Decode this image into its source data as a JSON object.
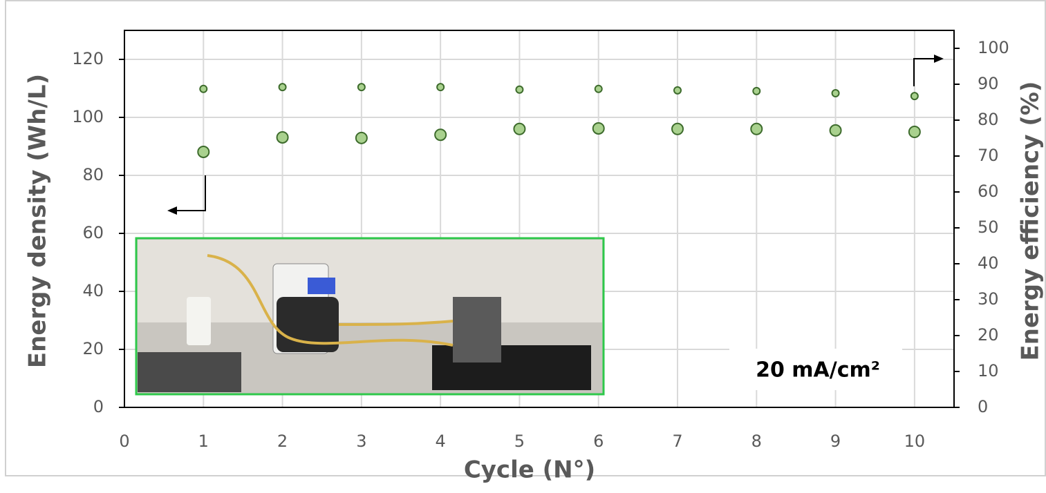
{
  "chart_data": {
    "type": "scatter",
    "x_label": "Cycle (N°)",
    "y_label": "Energy density (Wh/L)",
    "y2_label": "Energy efficiency (%)",
    "annotation": "20 mA/cm²",
    "xlim": [
      0,
      10.5
    ],
    "xticks": [
      0,
      1,
      2,
      3,
      4,
      5,
      6,
      7,
      8,
      9,
      10
    ],
    "ylim": [
      0,
      130
    ],
    "yticks": [
      0,
      20,
      40,
      60,
      80,
      100,
      120
    ],
    "y2lim": [
      0,
      105
    ],
    "y2ticks": [
      0,
      10,
      20,
      30,
      40,
      50,
      60,
      70,
      80,
      90,
      100
    ],
    "grid": true,
    "series": [
      {
        "color": "#a9d18e",
        "marker_size": 8,
        "x": [
          1,
          2,
          3,
          4,
          5,
          6,
          7,
          8,
          9,
          10
        ],
        "values": [
          88.1,
          93.1,
          92.9,
          94.0,
          96.0,
          96.2,
          96.0,
          96.0,
          95.5,
          95.0
        ]
      },
      {
        "color": "#a9d18e",
        "marker_size": 5,
        "axis": "y2",
        "x": [
          1,
          2,
          3,
          4,
          5,
          6,
          7,
          8,
          9,
          10
        ],
        "values": [
          88.7,
          89.2,
          89.2,
          89.2,
          88.5,
          88.7,
          88.3,
          88.1,
          87.5,
          86.7
        ]
      }
    ]
  }
}
